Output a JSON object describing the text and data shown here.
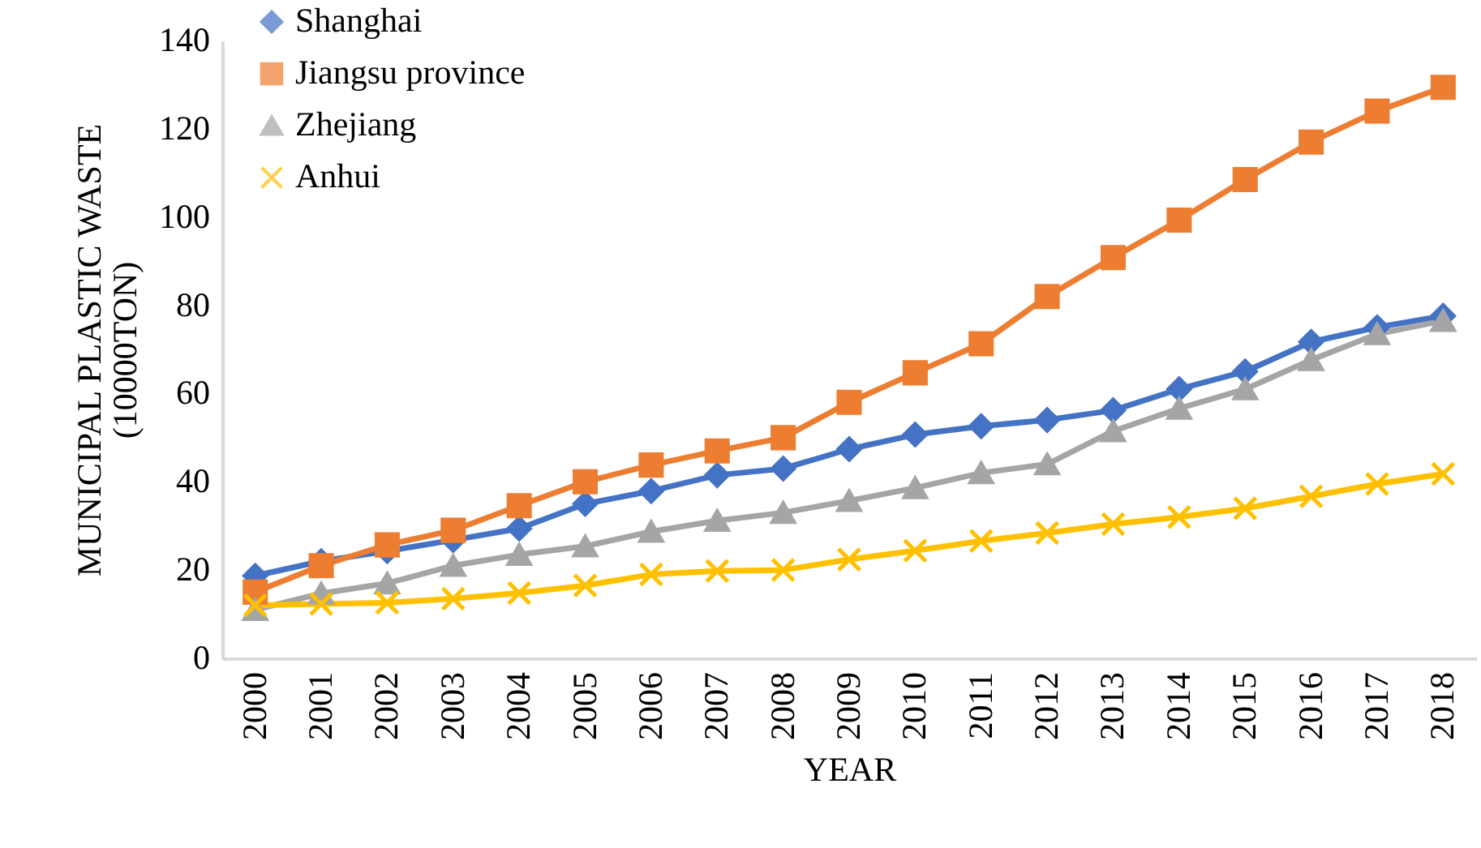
{
  "chart_data": {
    "type": "line",
    "xlabel": "YEAR",
    "ylabel": "MUNICIPAL PLASTIC WASTE\n(10000TON)",
    "categories": [
      "2000",
      "2001",
      "2002",
      "2003",
      "2004",
      "2005",
      "2006",
      "2007",
      "2008",
      "2009",
      "2010",
      "2011",
      "2012",
      "2013",
      "2014",
      "2015",
      "2016",
      "2017",
      "2018"
    ],
    "ylim": [
      0,
      140
    ],
    "yticks": [
      0,
      20,
      40,
      60,
      80,
      100,
      120,
      140
    ],
    "grid": false,
    "legend": "top left",
    "series": [
      {
        "name": "Shanghai",
        "color": "#4472c4",
        "marker": "diamond",
        "values": [
          18.7,
          22,
          24.3,
          26.8,
          29.4,
          35,
          37.9,
          41.5,
          43,
          47.4,
          50.7,
          52.6,
          54,
          56.2,
          61,
          65,
          71.7,
          75,
          77.6
        ]
      },
      {
        "name": "Jiangsu province",
        "color": "#ed7d31",
        "marker": "square",
        "values": [
          15,
          21,
          25.7,
          29,
          34.6,
          40,
          43.8,
          47,
          50,
          58,
          64.7,
          71.3,
          82,
          90.8,
          99.3,
          108.5,
          117,
          124,
          129.4
        ]
      },
      {
        "name": "Zhejiang",
        "color": "#a5a5a5",
        "marker": "triangle",
        "values": [
          11,
          14.7,
          17,
          21,
          23.5,
          25.4,
          28.7,
          31.2,
          33,
          35.7,
          38.6,
          42,
          44,
          51.5,
          56.6,
          61,
          67.6,
          73.5,
          76.5
        ]
      },
      {
        "name": "Anhui",
        "color": "#ffc000",
        "marker": "cross",
        "values": [
          12,
          12.3,
          12.6,
          13.5,
          14.8,
          16.5,
          19,
          19.8,
          20,
          22.4,
          24.4,
          26.6,
          28.4,
          30.4,
          32,
          34,
          36.7,
          39.5,
          41.8
        ]
      }
    ]
  }
}
